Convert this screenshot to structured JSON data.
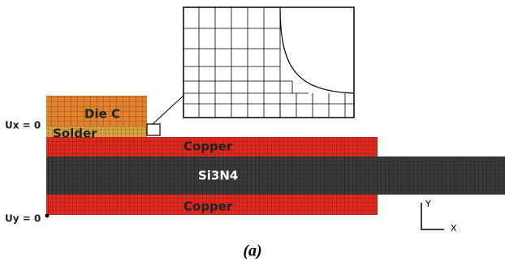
{
  "labels": {
    "die": "Die C",
    "solder": "Solder",
    "copper_top": "Copper",
    "substrate": "Si3N4",
    "copper_bottom": "Copper"
  },
  "boundary_conditions": {
    "ux": "Ux = 0",
    "uy": "Uy = 0"
  },
  "axes": {
    "y": "Y",
    "x": "X"
  },
  "caption": "(a)"
}
